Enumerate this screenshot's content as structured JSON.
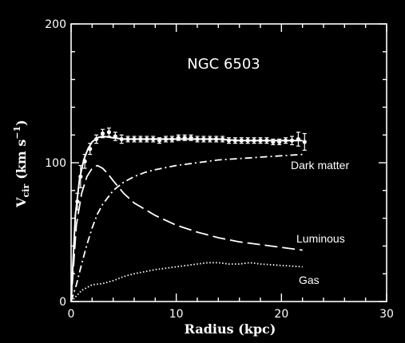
{
  "chart_data": {
    "type": "line",
    "title": "NGC 6503",
    "xlabel": "Radius (kpc)",
    "ylabel_main": "V",
    "ylabel_sub": "cir",
    "ylabel_unit_open": "(km s",
    "ylabel_unit_exp": "−1",
    "ylabel_unit_close": ")",
    "xlim": [
      0,
      30
    ],
    "ylim": [
      0,
      200
    ],
    "x_ticks": [
      0,
      10,
      20,
      30
    ],
    "y_ticks": [
      0,
      100,
      200
    ],
    "x_tick_labels": [
      "0",
      "10",
      "20",
      "30"
    ],
    "y_tick_labels": [
      "0",
      "100",
      "200"
    ],
    "observed": {
      "x": [
        0.6,
        0.9,
        1.3,
        1.8,
        2.4,
        3.0,
        3.6,
        4.2,
        4.8,
        5.4,
        6.0,
        6.6,
        7.2,
        7.8,
        8.4,
        9.0,
        9.6,
        10.2,
        10.8,
        11.4,
        12.0,
        12.6,
        13.2,
        13.8,
        14.4,
        15.0,
        15.6,
        16.2,
        16.8,
        17.4,
        18.0,
        18.6,
        19.2,
        19.8,
        20.4,
        21.0,
        21.6,
        22.2
      ],
      "y": [
        72,
        90,
        101,
        110,
        117,
        121,
        122,
        119,
        117,
        117,
        117,
        117,
        117,
        117,
        116,
        117,
        117,
        118,
        118,
        118,
        117,
        117,
        117,
        117,
        117,
        116,
        116,
        116,
        116,
        116,
        116,
        116,
        115,
        115,
        116,
        116,
        117,
        115
      ],
      "err": [
        6,
        8,
        5,
        4,
        3,
        3,
        3,
        3,
        3,
        2,
        2,
        2,
        2,
        2,
        2,
        2,
        2,
        2,
        2,
        2,
        2,
        2,
        2,
        2,
        2,
        2,
        2,
        2,
        2,
        2,
        2,
        2,
        2,
        2,
        2,
        3,
        5,
        6
      ]
    },
    "series": [
      {
        "name": "Dark matter",
        "style": "dash-dot",
        "x": [
          0,
          0.5,
          1,
          1.5,
          2,
          2.5,
          3,
          4,
          5,
          6,
          7,
          8,
          10,
          12,
          14,
          16,
          18,
          20,
          22
        ],
        "y": [
          0,
          12,
          27,
          41,
          53,
          63,
          70,
          80,
          86,
          90,
          93,
          95,
          98,
          100,
          102,
          103,
          104,
          105,
          106
        ]
      },
      {
        "name": "Luminous",
        "style": "long-dash",
        "x": [
          0,
          0.5,
          1,
          1.5,
          2,
          2.5,
          3,
          3.5,
          4,
          5,
          6,
          8,
          10,
          12,
          14,
          16,
          18,
          20,
          22
        ],
        "y": [
          0,
          55,
          78,
          90,
          96,
          98,
          96,
          92,
          87,
          78,
          71,
          62,
          55,
          50,
          46,
          43,
          41,
          39,
          37
        ]
      },
      {
        "name": "Gas",
        "style": "dotted",
        "x": [
          0,
          1,
          2,
          3,
          4,
          5,
          6,
          8,
          10,
          12,
          13,
          14,
          15,
          16,
          17,
          18,
          20,
          22
        ],
        "y": [
          0,
          8,
          12,
          13,
          15,
          18,
          20,
          23,
          25,
          27,
          28,
          28,
          27,
          27,
          28,
          27,
          26,
          25
        ]
      }
    ],
    "fit": {
      "x": [
        0,
        0.4,
        0.8,
        1.2,
        1.6,
        2.0,
        2.5,
        3,
        4,
        5,
        6,
        8,
        10,
        12,
        14,
        16,
        18,
        20,
        22
      ],
      "y": [
        0,
        62,
        88,
        102,
        110,
        115,
        118,
        119,
        118,
        117,
        117,
        117,
        117,
        117,
        117,
        116,
        116,
        116,
        116
      ]
    },
    "grid": false
  }
}
